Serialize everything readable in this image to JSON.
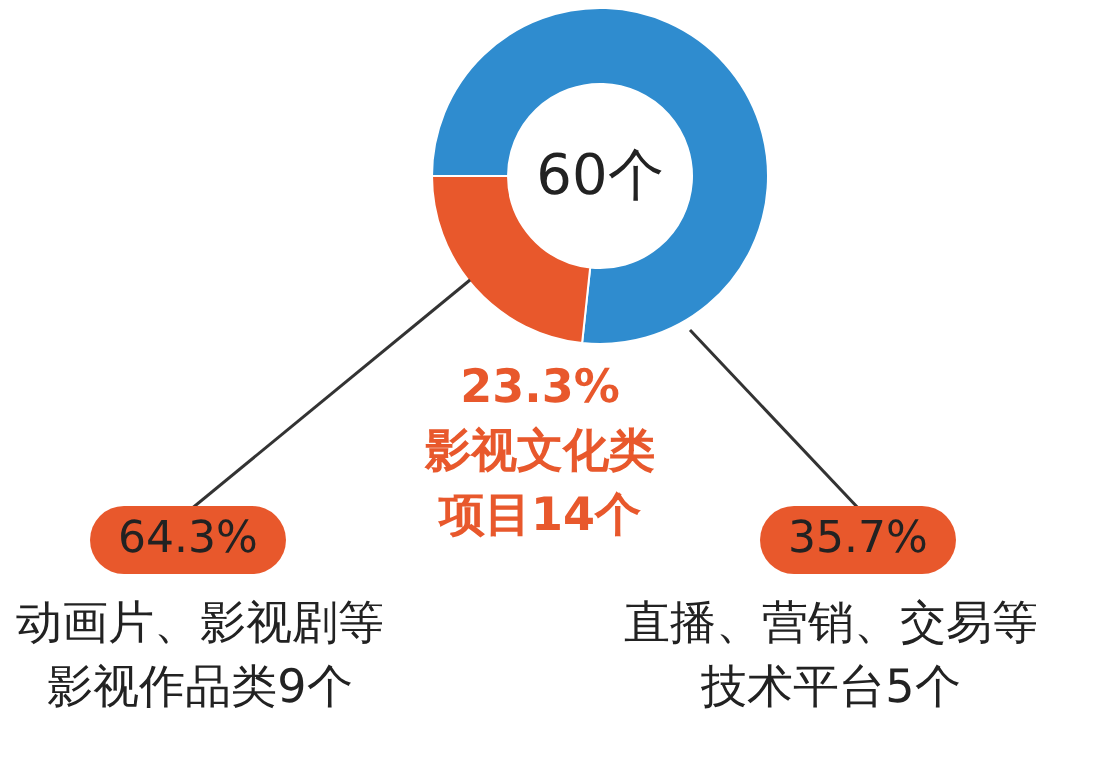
{
  "chart_data": {
    "type": "donut",
    "categories": [
      null,
      "影视文化类项目14个"
    ],
    "values": [
      76.7,
      23.3
    ],
    "colors": [
      "#2f8ccf",
      "#e8582c"
    ],
    "value_labels": [
      null,
      "23.3%"
    ],
    "annotations": [
      "60个",
      "64.3%",
      "动画片、影视剧等影视作品类9个",
      "35.7%",
      "直播、营销、交易等技术平台5个"
    ]
  }
}
